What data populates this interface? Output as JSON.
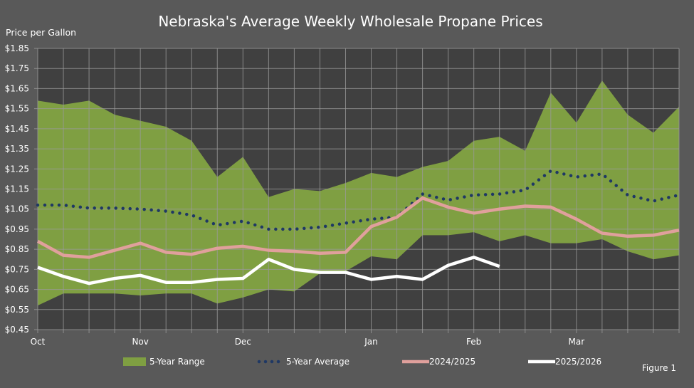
{
  "chart_data": {
    "type": "area",
    "title": "Nebraska's Average Weekly Wholesale Propane Prices",
    "ylabel": "Price per Gallon",
    "xlabel": "",
    "ylim": [
      0.45,
      1.85
    ],
    "yticks": [
      "$1.85",
      "$1.75",
      "$1.65",
      "$1.55",
      "$1.45",
      "$1.35",
      "$1.25",
      "$1.15",
      "$1.05",
      "$0.95",
      "$0.85",
      "$0.75",
      "$0.65",
      "$0.55",
      "$0.45"
    ],
    "ytick_values": [
      1.85,
      1.75,
      1.65,
      1.55,
      1.45,
      1.35,
      1.25,
      1.15,
      1.05,
      0.95,
      0.85,
      0.75,
      0.65,
      0.55,
      0.45
    ],
    "x_count": 26,
    "xticks": [
      {
        "label": "Oct",
        "index": 0
      },
      {
        "label": "Nov",
        "index": 4
      },
      {
        "label": "Dec",
        "index": 8
      },
      {
        "label": "Jan",
        "index": 13
      },
      {
        "label": "Feb",
        "index": 17
      },
      {
        "label": "Mar",
        "index": 21
      }
    ],
    "grid": true,
    "legend_position": "bottom",
    "series": [
      {
        "name": "5-Year Range",
        "kind": "range",
        "color": "#7f9f42",
        "upper": [
          1.59,
          1.57,
          1.59,
          1.52,
          1.49,
          1.46,
          1.39,
          1.21,
          1.31,
          1.11,
          1.15,
          1.14,
          1.18,
          1.23,
          1.21,
          1.26,
          1.29,
          1.39,
          1.41,
          1.34,
          1.63,
          1.48,
          1.69,
          1.52,
          1.43,
          1.56
        ],
        "lower": [
          0.57,
          0.63,
          0.63,
          0.63,
          0.62,
          0.63,
          0.63,
          0.58,
          0.61,
          0.65,
          0.64,
          0.73,
          0.74,
          0.815,
          0.8,
          0.92,
          0.92,
          0.935,
          0.89,
          0.92,
          0.88,
          0.88,
          0.9,
          0.84,
          0.8,
          0.82
        ]
      },
      {
        "name": "5-Year Average",
        "kind": "dotted",
        "color": "#1f3864",
        "values": [
          1.07,
          1.07,
          1.055,
          1.055,
          1.05,
          1.04,
          1.02,
          0.97,
          0.99,
          0.95,
          0.95,
          0.96,
          0.98,
          1.0,
          1.01,
          1.125,
          1.095,
          1.12,
          1.125,
          1.145,
          1.24,
          1.21,
          1.225,
          1.12,
          1.09,
          1.12
        ]
      },
      {
        "name": "2024/2025",
        "kind": "line",
        "color": "#e0a09c",
        "values": [
          0.89,
          0.82,
          0.81,
          0.845,
          0.88,
          0.835,
          0.825,
          0.855,
          0.865,
          0.845,
          0.84,
          0.83,
          0.835,
          0.963,
          1.01,
          1.105,
          1.06,
          1.03,
          1.05,
          1.065,
          1.06,
          1.0,
          0.93,
          0.915,
          0.92,
          0.945
        ]
      },
      {
        "name": "2025/2026",
        "kind": "line",
        "color": "#ffffff",
        "values": [
          0.76,
          0.715,
          0.68,
          0.705,
          0.72,
          0.685,
          0.685,
          0.7,
          0.705,
          0.8,
          0.75,
          0.735,
          0.735,
          0.7,
          0.715,
          0.7,
          0.77,
          0.81,
          0.765
        ]
      }
    ]
  },
  "colors": {
    "background": "#595959",
    "plot": "#404040",
    "grid": "#9a9a9a"
  },
  "figure_label": "Figure 1"
}
